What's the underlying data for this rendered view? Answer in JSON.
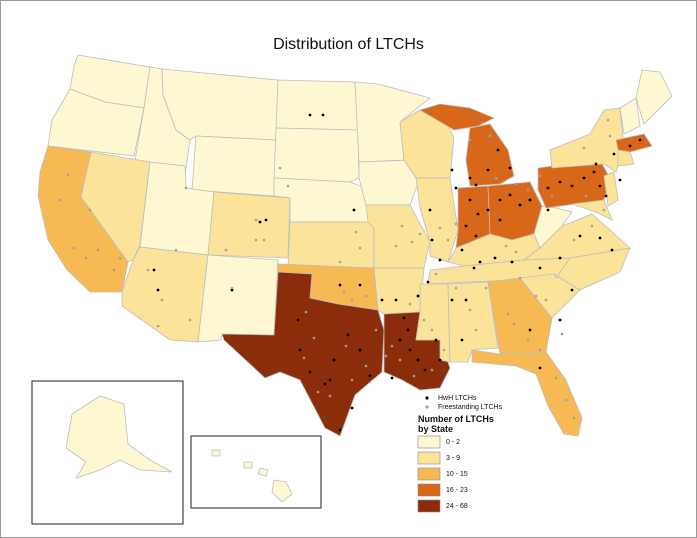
{
  "title": "Distribution of LTCHs",
  "colors": {
    "class_0_2": "#fdf8d2",
    "class_3_9": "#fbe39a",
    "class_10_15": "#f7b954",
    "class_16_23": "#d9671a",
    "class_24_68": "#8b2d0a",
    "hwh_dot": "#000000",
    "freestanding_dot": "#a0a0a0"
  },
  "legend": {
    "markers": [
      {
        "label": "HwH LTCHs",
        "symbol": "black-dot"
      },
      {
        "label": "Freestanding LTCHs",
        "symbol": "gray-dot"
      }
    ],
    "heading_line1": "Number of LTCHs",
    "heading_line2": "by State",
    "classes": [
      {
        "label": "0 - 2",
        "color": "#fdf8d2"
      },
      {
        "label": "3 - 9",
        "color": "#fbe39a"
      },
      {
        "label": "10 - 15",
        "color": "#f7b954"
      },
      {
        "label": "16 - 23",
        "color": "#d9671a"
      },
      {
        "label": "24 - 68",
        "color": "#8b2d0a"
      }
    ]
  }
}
